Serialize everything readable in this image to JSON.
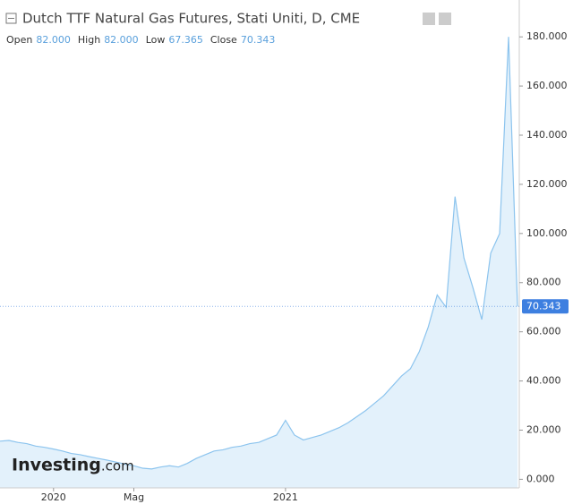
{
  "chart_data": {
    "type": "area",
    "title": "Dutch TTF Natural Gas Futures, Stati Uniti, D, CME",
    "ohlc": {
      "labels": [
        "Open",
        "High",
        "Low",
        "Close"
      ],
      "values": [
        82,
        82,
        67.365,
        70.343
      ],
      "value_labels": [
        "82.000",
        "82.000",
        "67.365",
        "70.343"
      ]
    },
    "watermark": "Investing",
    "watermark_suffix": ".com",
    "categories": [
      null,
      null,
      null,
      null,
      null,
      null,
      "2020",
      null,
      null,
      null,
      null,
      null,
      null,
      null,
      null,
      "Mag",
      null,
      null,
      null,
      null,
      null,
      null,
      null,
      null,
      null,
      null,
      null,
      null,
      null,
      null,
      null,
      null,
      "2021",
      null,
      null,
      null,
      null,
      null,
      null,
      null,
      null,
      null,
      null,
      null,
      null,
      null,
      null,
      null,
      null,
      null,
      null,
      null,
      null,
      null,
      null,
      null,
      null,
      null,
      null
    ],
    "values": [
      15.5,
      15.8,
      15,
      14.5,
      13.5,
      13,
      12.3,
      11.5,
      10.5,
      10,
      9.2,
      8.5,
      7.8,
      7,
      6.2,
      5.5,
      4.5,
      4.2,
      5,
      5.5,
      5,
      6.5,
      8.5,
      10,
      11.5,
      12,
      13,
      13.5,
      14.5,
      15,
      16.5,
      18,
      24,
      18,
      16,
      17,
      18,
      19.5,
      21,
      23,
      25.5,
      28,
      31,
      34,
      38,
      42,
      45,
      52,
      62,
      75,
      70,
      115,
      90,
      78,
      65,
      92,
      100,
      180,
      70.343
    ],
    "color": "#8cc4ee",
    "fill": "#e3f1fb",
    "last_value": 70.343,
    "last_value_label": "70.343",
    "last_color": "#3d7fe0",
    "ylim": [
      -3.5,
      195
    ],
    "yticks": [
      {
        "value": 0,
        "label": "0.000"
      },
      {
        "value": 20,
        "label": "20.000"
      },
      {
        "value": 40,
        "label": "40.000"
      },
      {
        "value": 60,
        "label": "60.000"
      },
      {
        "value": 80,
        "label": "80.000"
      },
      {
        "value": 100,
        "label": "100.000"
      },
      {
        "value": 120,
        "label": "120.000"
      },
      {
        "value": 140,
        "label": "140.000"
      },
      {
        "value": 160,
        "label": "160.000"
      },
      {
        "value": 180,
        "label": "180.000"
      }
    ]
  }
}
